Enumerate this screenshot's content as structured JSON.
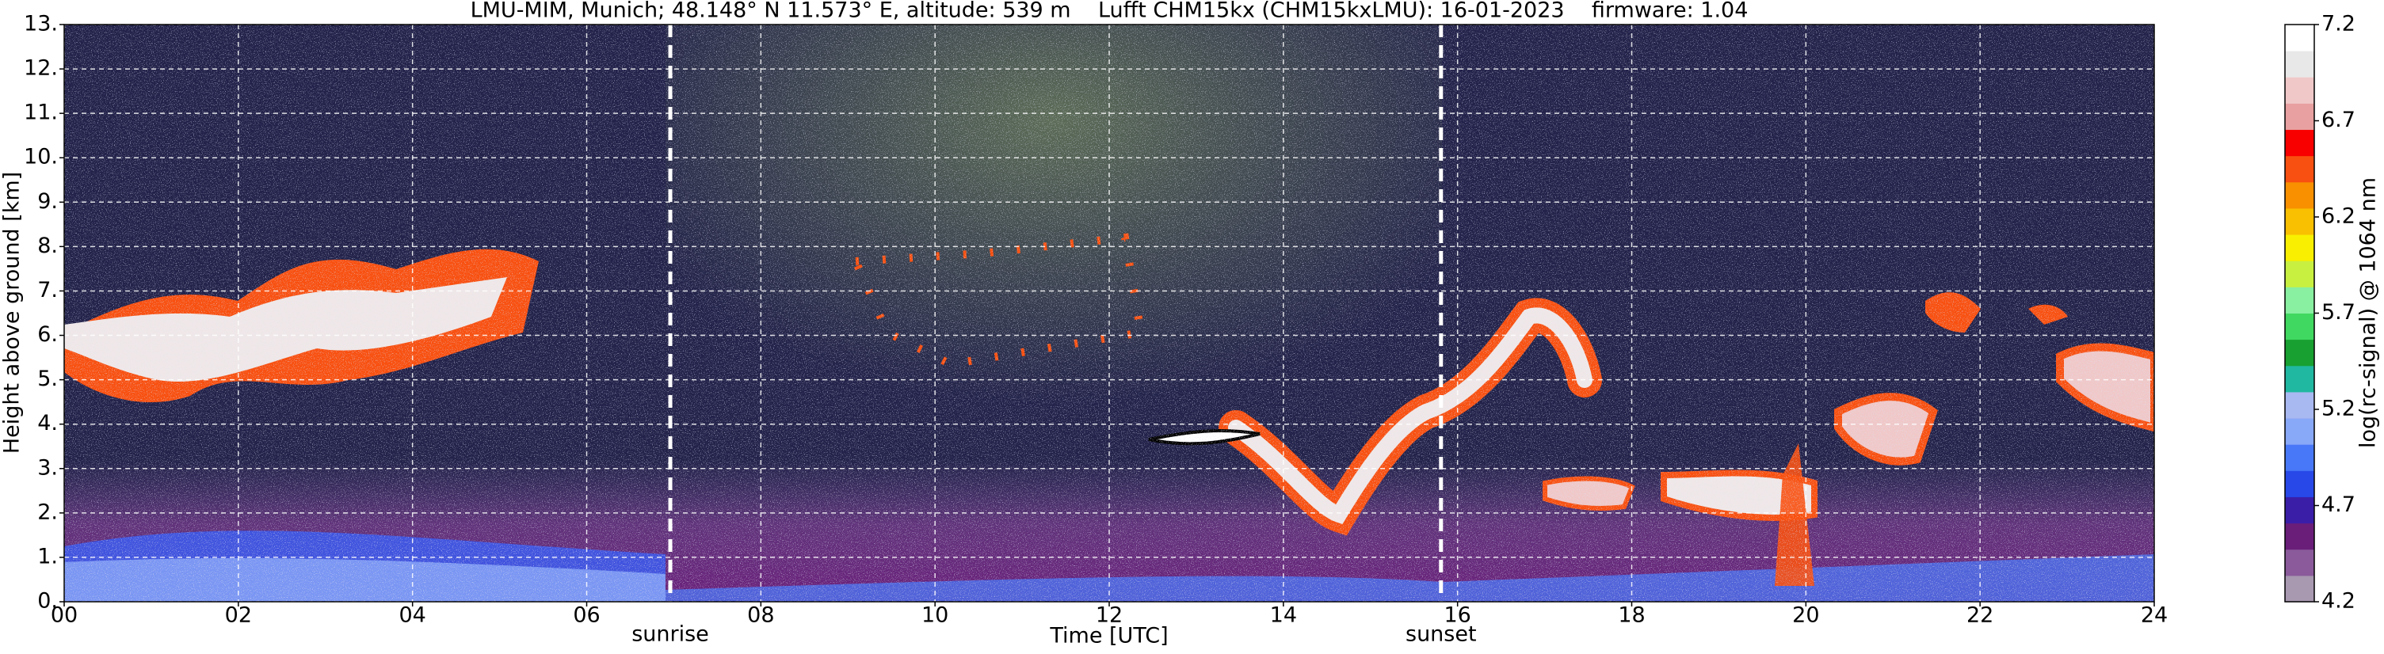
{
  "chart_data": {
    "type": "heatmap",
    "title": "LMU-MIM, Munich; 48.148° N 11.573° E, altitude: 539 m    Lufft CHM15kx (CHM15kxLMU): 16-01-2023    firmware: 1.04",
    "xlabel": "Time [UTC]",
    "ylabel": "Height above ground [km]",
    "xlim": [
      0,
      24
    ],
    "xticks": [
      {
        "value": 0,
        "label": "00"
      },
      {
        "value": 2,
        "label": "02"
      },
      {
        "value": 4,
        "label": "04"
      },
      {
        "value": 6,
        "label": "06"
      },
      {
        "value": 8,
        "label": "08"
      },
      {
        "value": 10,
        "label": "10"
      },
      {
        "value": 12,
        "label": "12"
      },
      {
        "value": 14,
        "label": "14"
      },
      {
        "value": 16,
        "label": "16"
      },
      {
        "value": 18,
        "label": "18"
      },
      {
        "value": 20,
        "label": "20"
      },
      {
        "value": 22,
        "label": "22"
      },
      {
        "value": 24,
        "label": "24"
      }
    ],
    "ylim": [
      0,
      13
    ],
    "yticks": [
      {
        "value": 0,
        "label": "0."
      },
      {
        "value": 1,
        "label": "1."
      },
      {
        "value": 2,
        "label": "2."
      },
      {
        "value": 3,
        "label": "3."
      },
      {
        "value": 4,
        "label": "4."
      },
      {
        "value": 5,
        "label": "5."
      },
      {
        "value": 6,
        "label": "6."
      },
      {
        "value": 7,
        "label": "7."
      },
      {
        "value": 8,
        "label": "8."
      },
      {
        "value": 9,
        "label": "9."
      },
      {
        "value": 10,
        "label": "10."
      },
      {
        "value": 11,
        "label": "11."
      },
      {
        "value": 12,
        "label": "12."
      },
      {
        "value": 13,
        "label": "13."
      }
    ],
    "grid": true,
    "annotations": [
      {
        "text": "sunrise",
        "x": 6.96
      },
      {
        "text": "sunset",
        "x": 15.81
      }
    ],
    "colorbar": {
      "label": "log(rc-signal) @ 1064 nm",
      "clim": [
        4.2,
        7.2
      ],
      "ticks": [
        4.2,
        4.7,
        5.2,
        5.7,
        6.2,
        6.7,
        7.2
      ],
      "colors": [
        "#a898b0",
        "#8a5a9a",
        "#6a1e7a",
        "#3a1ea8",
        "#2848e8",
        "#4878f8",
        "#88a8f8",
        "#a8b8f0",
        "#20b8a0",
        "#18a030",
        "#40d860",
        "#88f0a0",
        "#c8f040",
        "#f8f000",
        "#f8c000",
        "#f89000",
        "#f85010",
        "#f80000",
        "#e8a0a0",
        "#f0c8c8",
        "#e8e8e8",
        "#ffffff"
      ]
    }
  }
}
